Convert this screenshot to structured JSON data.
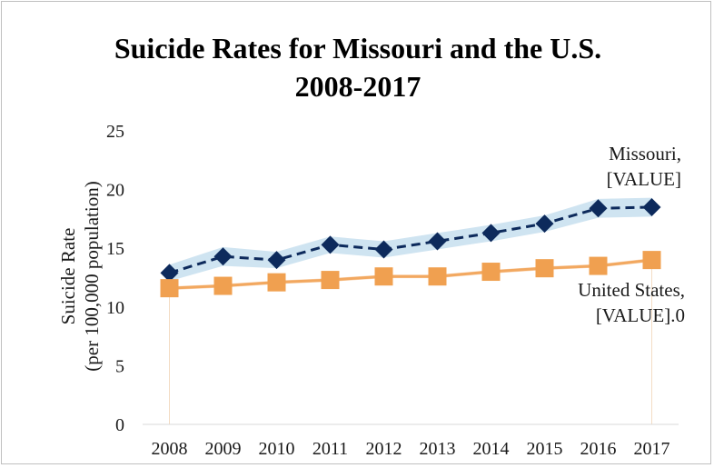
{
  "chart_data": {
    "type": "line",
    "title_line1": "Suicide Rates for Missouri and the U.S.",
    "title_line2": "2008-2017",
    "ylabel_line1": "Suicide Rate",
    "ylabel_line2": "(per 100,000 population)",
    "xlabel": "",
    "ylim": [
      0,
      25
    ],
    "yticks": [
      0,
      5,
      10,
      15,
      20,
      25
    ],
    "grid": false,
    "categories": [
      "2008",
      "2009",
      "2010",
      "2011",
      "2012",
      "2013",
      "2014",
      "2015",
      "2016",
      "2017"
    ],
    "series": [
      {
        "name": "Missouri",
        "values": [
          12.9,
          14.3,
          14.0,
          15.3,
          14.9,
          15.6,
          16.3,
          17.1,
          18.4,
          18.5
        ],
        "band_low": [
          12.2,
          13.5,
          13.3,
          14.6,
          14.2,
          14.9,
          15.6,
          16.4,
          17.6,
          17.7
        ],
        "band_high": [
          13.6,
          15.1,
          14.7,
          16.0,
          15.6,
          16.3,
          17.0,
          17.8,
          19.2,
          19.3
        ],
        "color": "#0d2a5c",
        "band_color": "#cfe4f1",
        "marker": "diamond",
        "label_line1": "Missouri,",
        "label_line2": "[VALUE]"
      },
      {
        "name": "United States",
        "values": [
          11.6,
          11.8,
          12.1,
          12.3,
          12.6,
          12.6,
          13.0,
          13.3,
          13.5,
          14.0
        ],
        "band_low": [
          11.45,
          11.65,
          11.95,
          12.15,
          12.45,
          12.45,
          12.85,
          13.15,
          13.35,
          13.85
        ],
        "band_high": [
          11.75,
          11.95,
          12.25,
          12.45,
          12.75,
          12.75,
          13.15,
          13.45,
          13.65,
          14.15
        ],
        "color": "#f0a050",
        "band_color": "#fbd8b8",
        "marker": "square",
        "label_line1": "United States,",
        "label_line2": "[VALUE].0"
      }
    ]
  }
}
